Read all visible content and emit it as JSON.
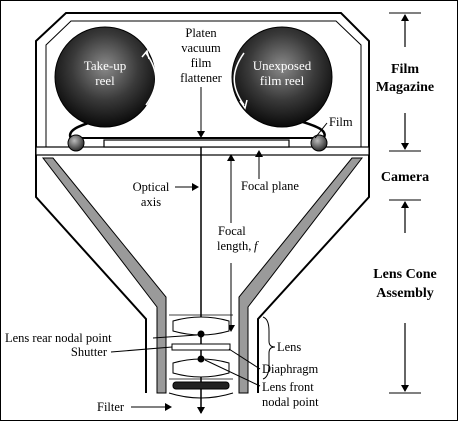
{
  "labels": {
    "takeup_line1": "Take-up",
    "takeup_line2": "reel",
    "unexposed_line1": "Unexposed",
    "unexposed_line2": "film reel",
    "platen_line1": "Platen",
    "platen_line2": "vacuum",
    "platen_line3": "film",
    "platen_line4": "flattener",
    "film": "Film",
    "film_magazine_line1": "Film",
    "film_magazine_line2": "Magazine",
    "camera": "Camera",
    "optical_axis_line1": "Optical",
    "optical_axis_line2": "axis",
    "focal_plane": "Focal plane",
    "focal_length_line1": "Focal",
    "focal_length_line2": "length,",
    "focal_length_var": "f",
    "lens_cone_line1": "Lens Cone",
    "lens_cone_line2": "Assembly",
    "lens": "Lens",
    "lens_rear_nodal_point": "Lens rear nodal point",
    "shutter": "Shutter",
    "diaphragm": "Diaphragm",
    "lens_front_line1": "Lens front",
    "lens_front_line2": "nodal point",
    "filter": "Filter"
  },
  "colors": {
    "line": "#000000",
    "cone_gray": "#9a9a9a",
    "reel_dark": "#111111",
    "reel_light": "#8a8a8a"
  }
}
